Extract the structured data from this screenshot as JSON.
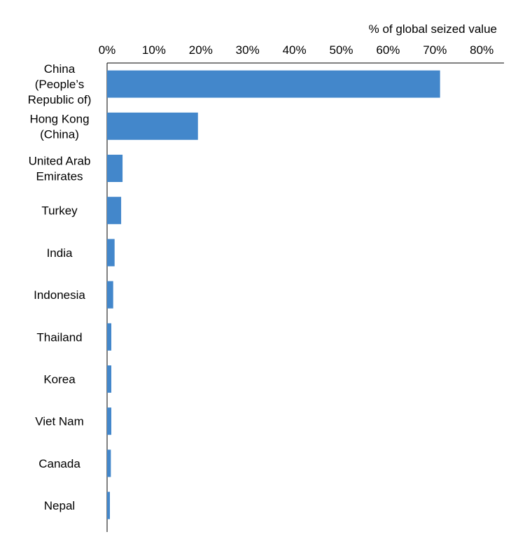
{
  "chart_data": {
    "type": "bar",
    "orientation": "horizontal",
    "xlabel": "% of global seized value",
    "xlim": [
      0,
      80
    ],
    "x_ticks": [
      "0%",
      "10%",
      "20%",
      "30%",
      "40%",
      "50%",
      "60%",
      "70%",
      "80%"
    ],
    "x_axis_position": "top",
    "grid": false,
    "bar_color": "#4387CB",
    "categories": [
      [
        "China",
        "(People’s",
        "Republic of)"
      ],
      [
        "Hong Kong",
        "(China)"
      ],
      [
        "United Arab",
        "Emirates"
      ],
      [
        "Turkey"
      ],
      [
        "India"
      ],
      [
        "Indonesia"
      ],
      [
        "Thailand"
      ],
      [
        "Korea"
      ],
      [
        "Viet Nam"
      ],
      [
        "Canada"
      ],
      [
        "Nepal"
      ]
    ],
    "values": [
      71.1,
      19.4,
      3.3,
      3.0,
      1.6,
      1.3,
      0.9,
      0.9,
      0.9,
      0.8,
      0.6
    ]
  }
}
